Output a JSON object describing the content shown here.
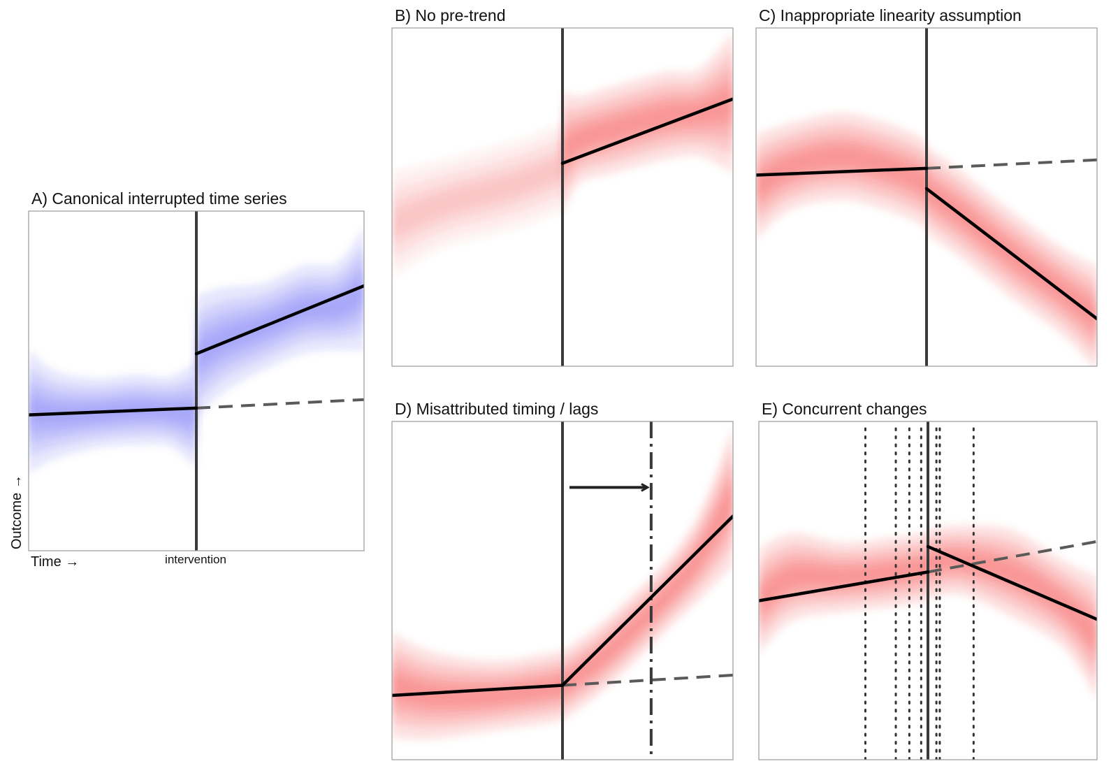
{
  "figure": {
    "axis_labels": {
      "x": "Time →",
      "y": "Outcome →",
      "intervention": "intervention"
    }
  },
  "colors": {
    "blue_band": "#6a6af0",
    "red_band": "#f04a4a",
    "fit_line": "#000000",
    "intervention_line": "#3a3a3a",
    "counterfactual": "#5a5a5a"
  },
  "chart_data": [
    {
      "id": "A",
      "type": "line",
      "title": "A) Canonical interrupted time series",
      "band_color": "blue",
      "xlim": [
        0,
        1
      ],
      "ylim": [
        0,
        1
      ],
      "intervention_x": 0.5,
      "pre_fit": [
        [
          0,
          0.4
        ],
        [
          0.5,
          0.42
        ]
      ],
      "post_fit": [
        [
          0.5,
          0.58
        ],
        [
          1,
          0.78
        ]
      ],
      "counterfactual": [
        [
          0.5,
          0.42
        ],
        [
          1,
          0.445
        ]
      ],
      "band": {
        "pre": [
          [
            0,
            0.41,
            0.07
          ],
          [
            0.08,
            0.4,
            0.05
          ],
          [
            0.2,
            0.405,
            0.04
          ],
          [
            0.32,
            0.415,
            0.04
          ],
          [
            0.42,
            0.41,
            0.04
          ],
          [
            0.5,
            0.4,
            0.06
          ]
        ],
        "post": [
          [
            0.5,
            0.57,
            0.07
          ],
          [
            0.58,
            0.62,
            0.06
          ],
          [
            0.7,
            0.66,
            0.05
          ],
          [
            0.82,
            0.71,
            0.05
          ],
          [
            0.92,
            0.72,
            0.05
          ],
          [
            1,
            0.77,
            0.07
          ]
        ]
      }
    },
    {
      "id": "B",
      "type": "line",
      "title": "B) No pre-trend",
      "band_color": "red",
      "xlim": [
        0,
        1
      ],
      "ylim": [
        0,
        1
      ],
      "intervention_x": 0.5,
      "pre_fit": [],
      "post_fit": [
        [
          0.5,
          0.6
        ],
        [
          1,
          0.79
        ]
      ],
      "counterfactual": [],
      "band": {
        "pre": [
          [
            0,
            0.42,
            0.06
          ],
          [
            0.15,
            0.48,
            0.05
          ],
          [
            0.3,
            0.52,
            0.05
          ],
          [
            0.4,
            0.55,
            0.05
          ],
          [
            0.5,
            0.59,
            0.05
          ]
        ],
        "post": [
          [
            0.5,
            0.63,
            0.07
          ],
          [
            0.55,
            0.67,
            0.05
          ],
          [
            0.65,
            0.7,
            0.05
          ],
          [
            0.8,
            0.74,
            0.05
          ],
          [
            0.9,
            0.75,
            0.05
          ],
          [
            1,
            0.78,
            0.08
          ]
        ]
      }
    },
    {
      "id": "C",
      "type": "line",
      "title": "C) Inappropriate linearity assumption",
      "band_color": "red",
      "xlim": [
        0,
        1
      ],
      "ylim": [
        0,
        1
      ],
      "intervention_x": 0.5,
      "pre_fit": [
        [
          0,
          0.565
        ],
        [
          0.5,
          0.585
        ]
      ],
      "post_fit": [
        [
          0.5,
          0.525
        ],
        [
          1,
          0.14
        ]
      ],
      "counterfactual": [
        [
          0.5,
          0.585
        ],
        [
          1,
          0.61
        ]
      ],
      "band": {
        "pre": [
          [
            0,
            0.53,
            0.06
          ],
          [
            0.1,
            0.59,
            0.05
          ],
          [
            0.25,
            0.62,
            0.05
          ],
          [
            0.4,
            0.585,
            0.05
          ],
          [
            0.5,
            0.54,
            0.05
          ]
        ],
        "post": [
          [
            0.5,
            0.52,
            0.05
          ],
          [
            0.6,
            0.45,
            0.05
          ],
          [
            0.75,
            0.33,
            0.05
          ],
          [
            0.9,
            0.22,
            0.05
          ],
          [
            1,
            0.14,
            0.06
          ]
        ]
      }
    },
    {
      "id": "D",
      "type": "line",
      "title": "D) Misattributed timing / lags",
      "band_color": "red",
      "xlim": [
        0,
        1
      ],
      "ylim": [
        0,
        1
      ],
      "intervention_x": 0.5,
      "lag_x": 0.76,
      "pre_fit": [
        [
          0,
          0.19
        ],
        [
          0.5,
          0.22
        ]
      ],
      "post_fit": [
        [
          0.5,
          0.22
        ],
        [
          1,
          0.72
        ]
      ],
      "counterfactual": [
        [
          0.5,
          0.22
        ],
        [
          1,
          0.25
        ]
      ],
      "band": {
        "pre": [
          [
            0,
            0.22,
            0.06
          ],
          [
            0.12,
            0.19,
            0.05
          ],
          [
            0.3,
            0.19,
            0.04
          ],
          [
            0.45,
            0.21,
            0.04
          ],
          [
            0.5,
            0.22,
            0.04
          ]
        ],
        "post": [
          [
            0.5,
            0.22,
            0.04
          ],
          [
            0.6,
            0.29,
            0.04
          ],
          [
            0.7,
            0.38,
            0.04
          ],
          [
            0.8,
            0.48,
            0.04
          ],
          [
            0.9,
            0.6,
            0.05
          ],
          [
            1,
            0.78,
            0.08
          ]
        ]
      }
    },
    {
      "id": "E",
      "type": "line",
      "title": "E) Concurrent changes",
      "band_color": "red",
      "xlim": [
        0,
        1
      ],
      "ylim": [
        0,
        1
      ],
      "intervention_x": 0.5,
      "concurrent_x": [
        0.315,
        0.405,
        0.445,
        0.48,
        0.525,
        0.535,
        0.635
      ],
      "pre_fit": [
        [
          0,
          0.47
        ],
        [
          0.5,
          0.555
        ]
      ],
      "post_fit": [
        [
          0.5,
          0.63
        ],
        [
          1,
          0.415
        ]
      ],
      "counterfactual": [
        [
          0.5,
          0.555
        ],
        [
          1,
          0.645
        ]
      ],
      "band": {
        "pre": [
          [
            0,
            0.47,
            0.06
          ],
          [
            0.1,
            0.54,
            0.05
          ],
          [
            0.25,
            0.54,
            0.04
          ],
          [
            0.4,
            0.555,
            0.04
          ],
          [
            0.5,
            0.57,
            0.04
          ]
        ],
        "post": [
          [
            0.5,
            0.58,
            0.04
          ],
          [
            0.6,
            0.59,
            0.04
          ],
          [
            0.75,
            0.55,
            0.05
          ],
          [
            0.9,
            0.46,
            0.05
          ],
          [
            1,
            0.36,
            0.07
          ]
        ]
      }
    }
  ]
}
